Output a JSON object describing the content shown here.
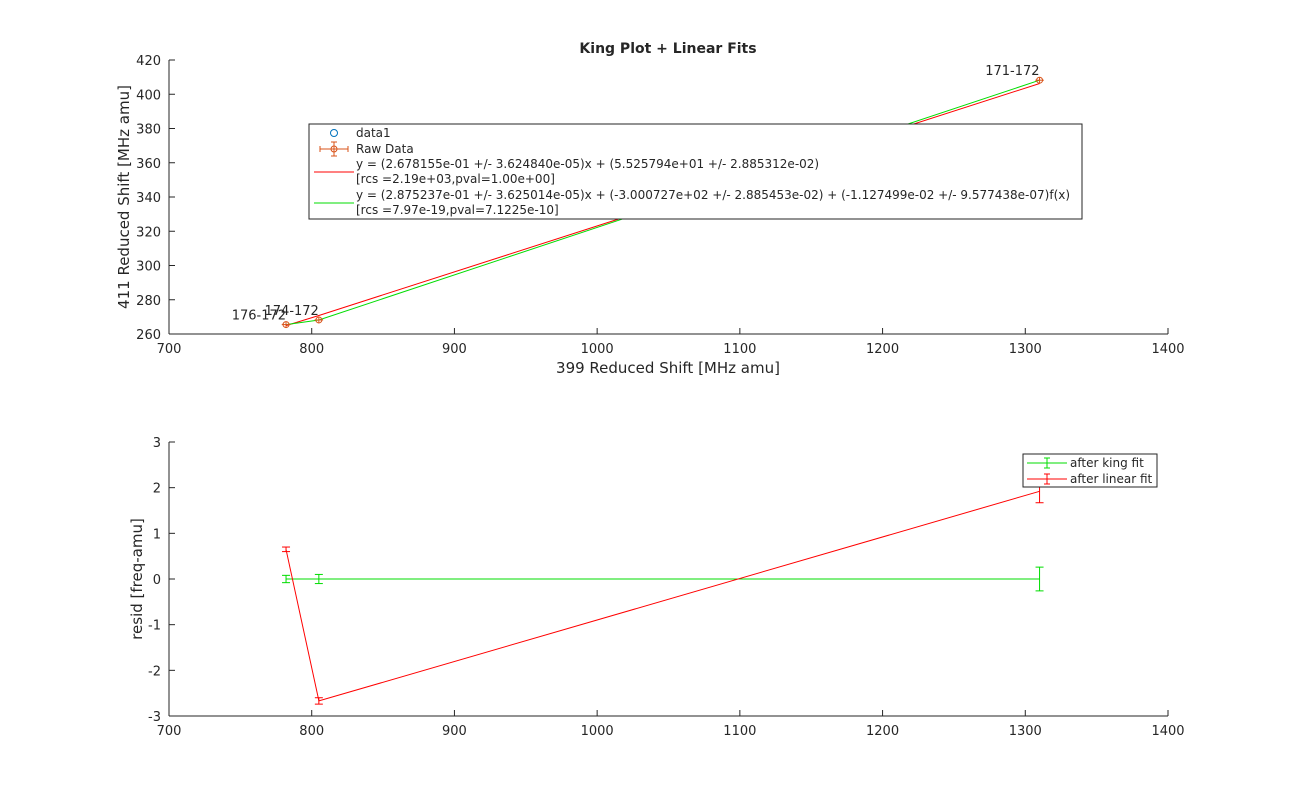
{
  "chart_data": [
    {
      "type": "line",
      "title": "King Plot + Linear Fits",
      "xlabel": "399 Reduced Shift [MHz amu]",
      "ylabel": "411 Reduced Shift [MHz amu]",
      "xlim": [
        700,
        1400
      ],
      "ylim": [
        260,
        420
      ],
      "xticks": [
        700,
        800,
        900,
        1000,
        1100,
        1200,
        1300,
        1400
      ],
      "yticks": [
        260,
        280,
        300,
        320,
        340,
        360,
        380,
        400,
        420
      ],
      "legend_position": "top-center",
      "series": [
        {
          "name": "data1",
          "kind": "marker",
          "color": "#0072BD",
          "x": [],
          "y": []
        },
        {
          "name": "Raw Data",
          "kind": "errorbar",
          "color": "#D95319",
          "x": [
            782,
            805,
            1310
          ],
          "y": [
            265.5,
            268.2,
            408.2
          ],
          "yerr": [
            0.6,
            0.6,
            0.6
          ],
          "xerr": [
            3,
            3,
            3
          ]
        },
        {
          "name": "y = (2.678155e-01 +/- 3.624840e-05)x + (5.525794e+01 +/- 2.885312e-02)",
          "name_line2": "[rcs =2.19e+03,pval=1.00e+00]",
          "kind": "line",
          "color": "#FF0000",
          "x": [
            782,
            805,
            1310
          ],
          "y": [
            264.9,
            270.8,
            406.3
          ]
        },
        {
          "name": "y = (2.875237e-01 +/- 3.625014e-05)x + (-3.000727e+02 +/- 2.885453e-02) + (-1.127499e-02 +/- 9.577438e-07)f(x)",
          "name_line2": "[rcs =7.97e-19,pval=7.1225e-10]",
          "kind": "line",
          "color": "#00DD00",
          "x": [
            782,
            805,
            1310
          ],
          "y": [
            265.5,
            268.2,
            408.2
          ]
        }
      ],
      "annotations": [
        {
          "text": "176-172",
          "x": 782,
          "y": 265.5
        },
        {
          "text": "174-172",
          "x": 805,
          "y": 268.2
        },
        {
          "text": "171-172",
          "x": 1310,
          "y": 408.2
        }
      ]
    },
    {
      "type": "line",
      "title": "",
      "xlabel": "",
      "ylabel": "resid [freq-amu]",
      "xlim": [
        700,
        1400
      ],
      "ylim": [
        -3,
        3
      ],
      "xticks": [
        700,
        800,
        900,
        1000,
        1100,
        1200,
        1300,
        1400
      ],
      "yticks": [
        -3,
        -2,
        -1,
        0,
        1,
        2,
        3
      ],
      "legend_position": "top-right",
      "series": [
        {
          "name": "after king fit",
          "color": "#00DD00",
          "x": [
            782,
            805,
            1310
          ],
          "y": [
            0,
            0,
            0
          ],
          "yerr": [
            0.08,
            0.1,
            0.26
          ]
        },
        {
          "name": "after linear fit",
          "color": "#FF0000",
          "x": [
            782,
            805,
            1310
          ],
          "y": [
            0.65,
            -2.67,
            1.92
          ],
          "yerr": [
            0.05,
            0.07,
            0.25
          ]
        }
      ]
    }
  ]
}
